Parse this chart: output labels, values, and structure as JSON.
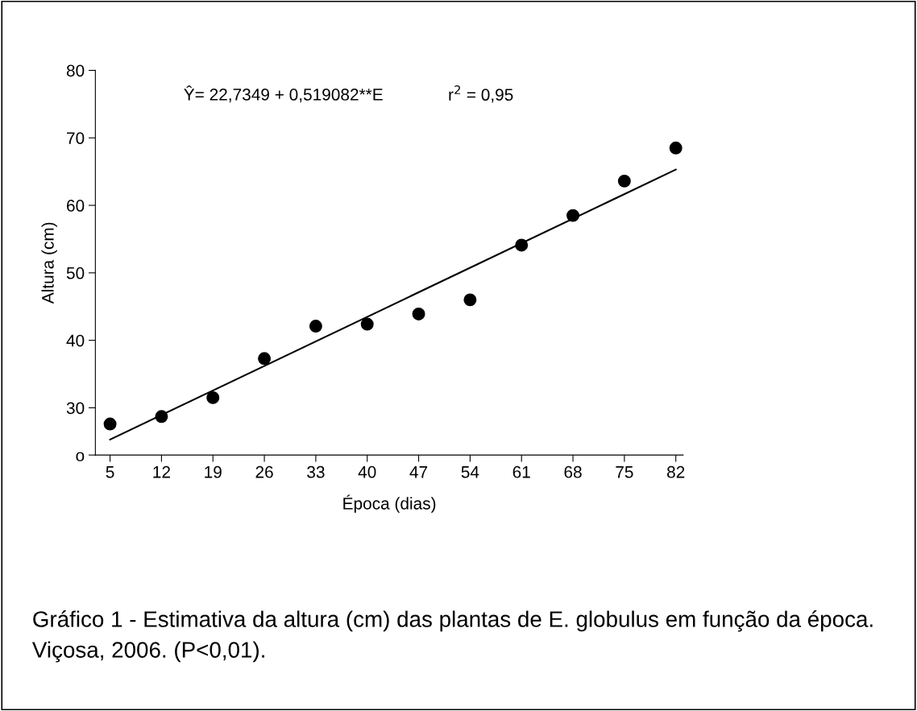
{
  "chart_data": {
    "type": "scatter",
    "xlabel": "Época (dias)",
    "ylabel": "Altura (cm)",
    "x": [
      5,
      12,
      19,
      26,
      33,
      40,
      47,
      54,
      61,
      68,
      75,
      82
    ],
    "series": [
      {
        "color": "#000000",
        "marker": "circle",
        "values": [
          27.6,
          28.7,
          31.5,
          37.3,
          42.1,
          42.4,
          43.9,
          46.0,
          54.1,
          58.5,
          63.6,
          68.5
        ]
      },
      {
        "type": "line",
        "color": "#000000",
        "marker": "none",
        "line_style": "solid",
        "x": [
          5,
          82
        ],
        "values": [
          25.3,
          65.3
        ]
      }
    ],
    "xlim": [
      3,
      83
    ],
    "xticks": [
      5,
      12,
      19,
      26,
      33,
      40,
      47,
      54,
      61,
      68,
      75,
      82
    ],
    "ylim": [
      23,
      80
    ],
    "yticks": [
      {
        "value": 23,
        "label": "o"
      },
      30,
      40,
      50,
      60,
      70,
      80
    ],
    "grid": false,
    "legend": false,
    "annotations": [
      "Ŷ= 22,7349 + 0,519082**E",
      "r$^{2}$ = 0,95",
      "Gráfico 1 - Estimativa da altura (cm) das plantas de E. globulus em função da época. Viçosa, 2006. (P<0,01)."
    ]
  }
}
